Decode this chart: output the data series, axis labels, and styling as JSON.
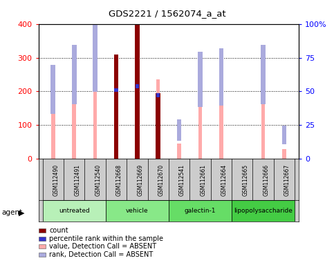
{
  "title": "GDS2221 / 1562074_a_at",
  "samples": [
    "GSM112490",
    "GSM112491",
    "GSM112540",
    "GSM112668",
    "GSM112669",
    "GSM112670",
    "GSM112541",
    "GSM112661",
    "GSM112664",
    "GSM112665",
    "GSM112666",
    "GSM112667"
  ],
  "groups": [
    {
      "name": "untreated",
      "indices": [
        0,
        1,
        2
      ],
      "color": "#b8f0b8"
    },
    {
      "name": "vehicle",
      "indices": [
        3,
        4,
        5
      ],
      "color": "#88e888"
    },
    {
      "name": "galectin-1",
      "indices": [
        6,
        7,
        8
      ],
      "color": "#66dd66"
    },
    {
      "name": "lipopolysaccharide",
      "indices": [
        9,
        10,
        11
      ],
      "color": "#44cc44"
    }
  ],
  "value_absent": [
    200,
    270,
    375,
    null,
    null,
    235,
    45,
    235,
    225,
    null,
    230,
    30
  ],
  "rank_absent": [
    145,
    175,
    210,
    null,
    null,
    null,
    65,
    165,
    170,
    null,
    175,
    55
  ],
  "count": [
    null,
    null,
    null,
    310,
    400,
    195,
    null,
    null,
    null,
    null,
    null,
    null
  ],
  "percentile": [
    null,
    null,
    null,
    51,
    54,
    47,
    null,
    null,
    null,
    null,
    null,
    null
  ],
  "ylim_left": [
    0,
    400
  ],
  "ylim_right": [
    0,
    100
  ],
  "yticks_left": [
    0,
    100,
    200,
    300,
    400
  ],
  "yticks_right": [
    0,
    25,
    50,
    75,
    100
  ],
  "yticklabels_right": [
    "0",
    "25",
    "50",
    "75",
    "100%"
  ],
  "color_count": "#8B0000",
  "color_percentile": "#3333cc",
  "color_value_absent": "#ffaaaa",
  "color_rank_absent": "#aaaadd",
  "legend_items": [
    {
      "color": "#8B0000",
      "label": "count"
    },
    {
      "color": "#3333cc",
      "label": "percentile rank within the sample"
    },
    {
      "color": "#ffaaaa",
      "label": "value, Detection Call = ABSENT"
    },
    {
      "color": "#aaaadd",
      "label": "rank, Detection Call = ABSENT"
    }
  ],
  "figsize": [
    4.83,
    3.84
  ],
  "dpi": 100
}
